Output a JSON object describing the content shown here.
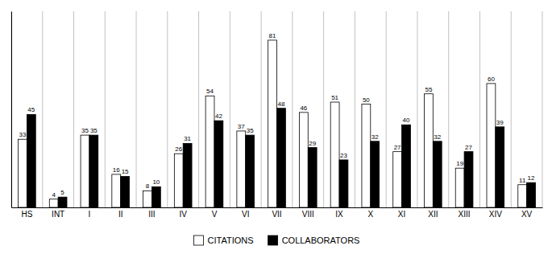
{
  "chart_data": {
    "type": "bar",
    "categories": [
      "HS",
      "INT",
      "I",
      "II",
      "III",
      "IV",
      "V",
      "VI",
      "VII",
      "VIII",
      "IX",
      "X",
      "XI",
      "XII",
      "XIII",
      "XIV",
      "XV"
    ],
    "series": [
      {
        "name": "CITATIONS",
        "color": "#ffffff",
        "values": [
          33,
          4,
          35,
          16,
          8,
          26,
          54,
          37,
          81,
          46,
          51,
          50,
          27,
          55,
          19,
          60,
          11
        ]
      },
      {
        "name": "COLLABORATORS",
        "color": "#000000",
        "values": [
          45,
          5,
          35,
          15,
          10,
          31,
          42,
          35,
          48,
          29,
          23,
          32,
          40,
          32,
          27,
          39,
          12
        ]
      }
    ],
    "ylim": [
      0,
      95
    ],
    "yticks": [],
    "tick_labels": "x",
    "data_labels": true,
    "legend": "bottom"
  }
}
